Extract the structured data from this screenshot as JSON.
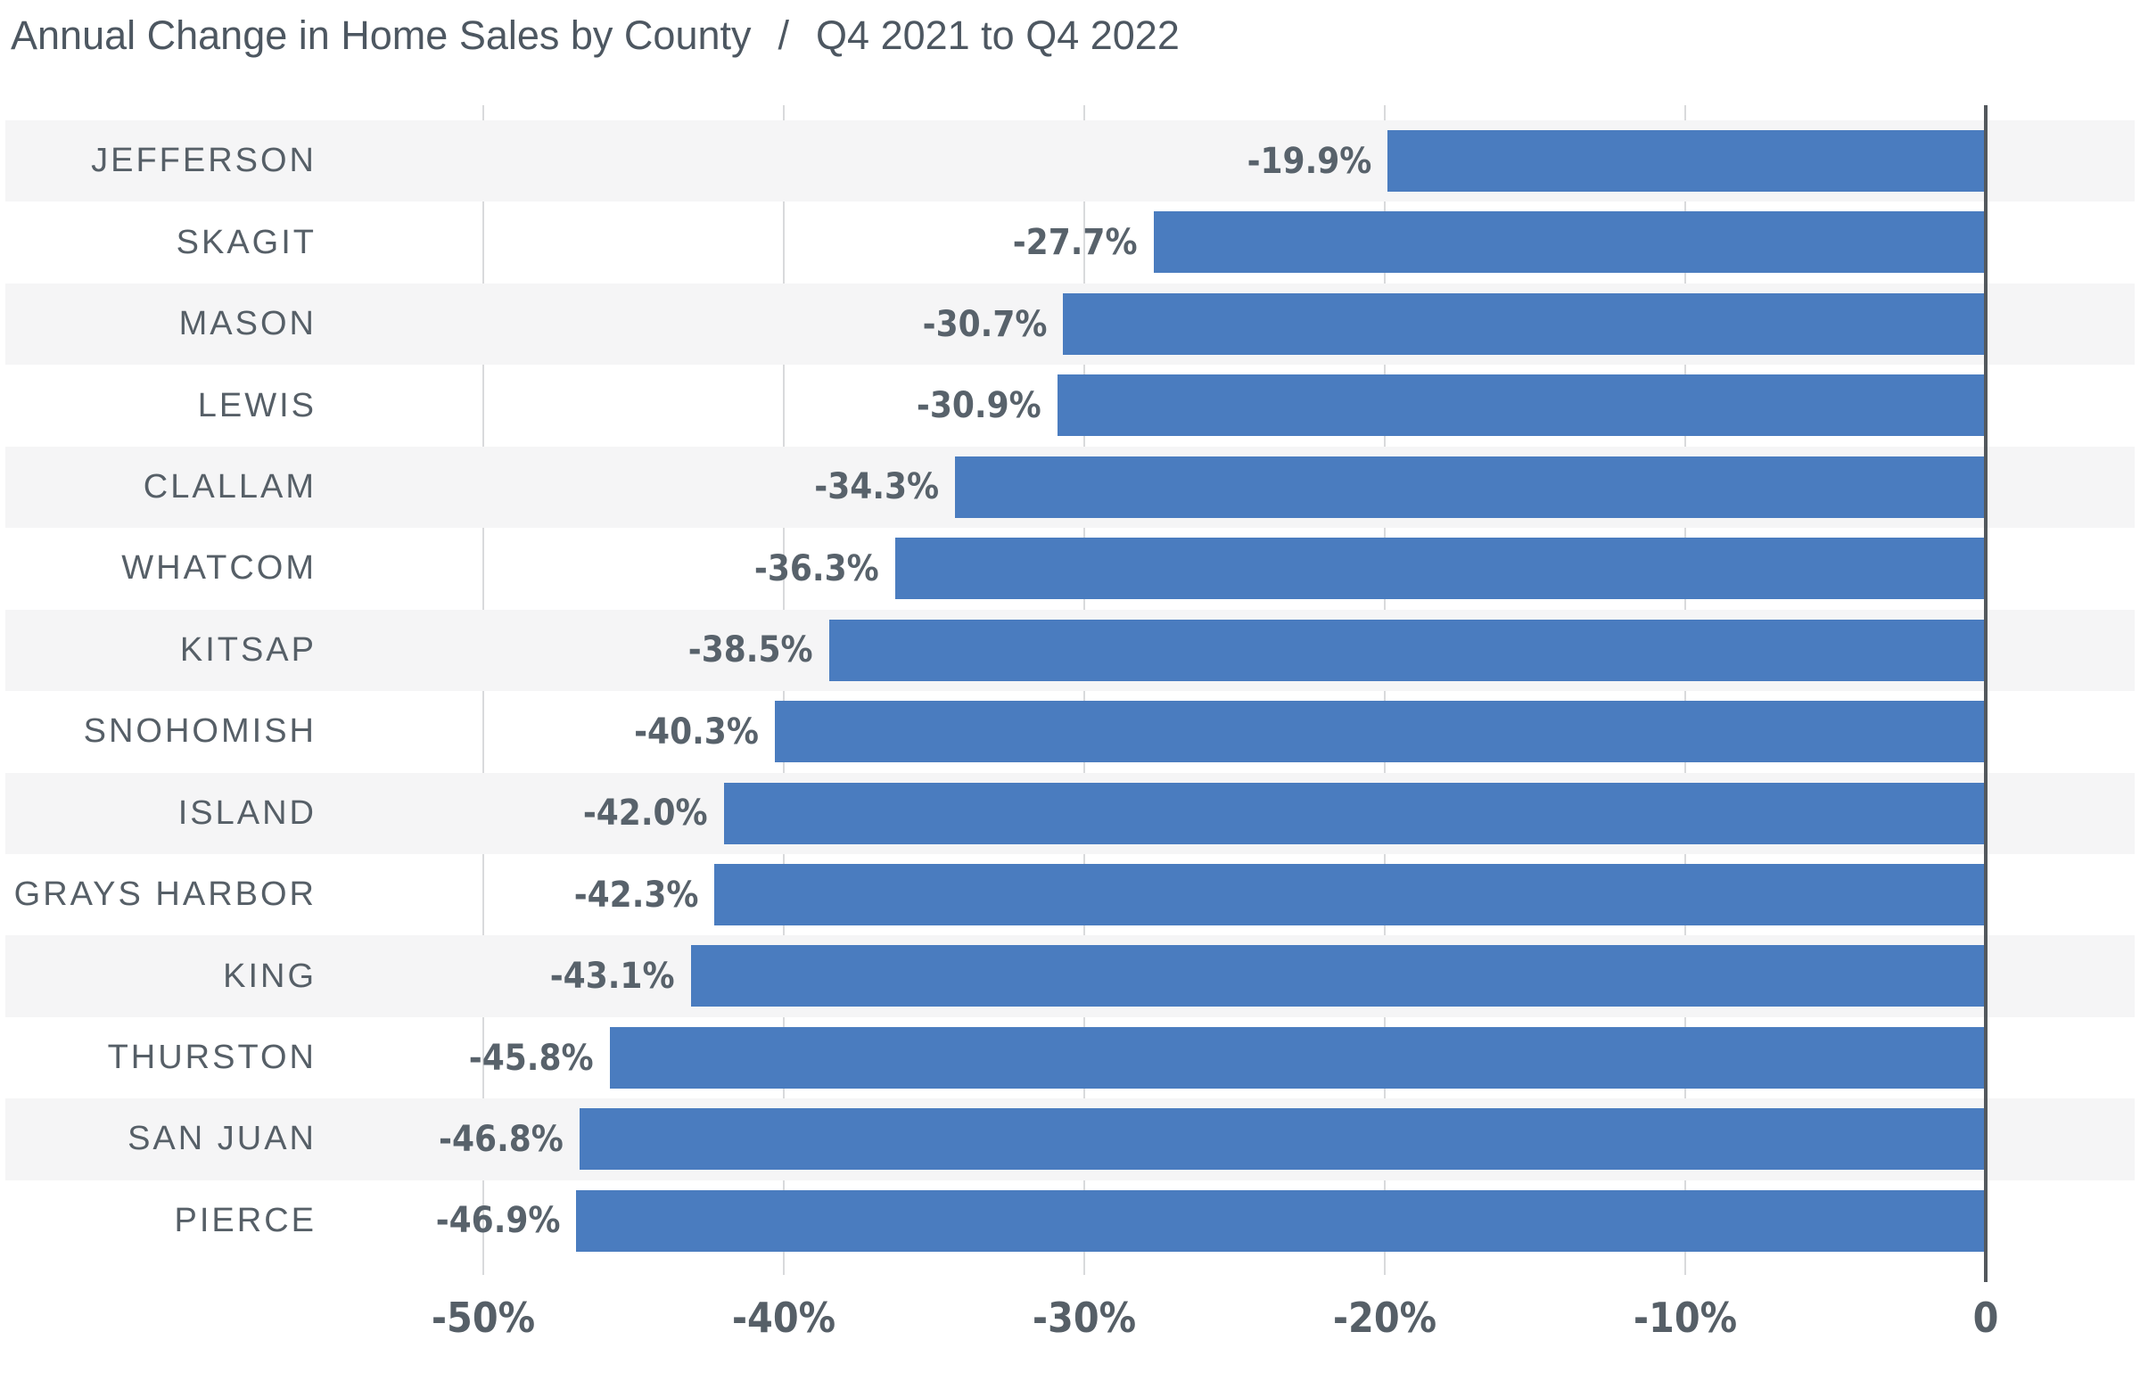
{
  "title": {
    "main": "Annual Change in Home Sales by County",
    "separator": "/",
    "period": "Q4 2021 to Q4 2022"
  },
  "chart_data": {
    "type": "bar",
    "orientation": "horizontal",
    "title": "Annual Change in Home Sales by County / Q4 2021 to Q4 2022",
    "xlabel": "",
    "ylabel": "",
    "value_suffix": "%",
    "categories": [
      "JEFFERSON",
      "SKAGIT",
      "MASON",
      "LEWIS",
      "CLALLAM",
      "WHATCOM",
      "KITSAP",
      "SNOHOMISH",
      "ISLAND",
      "GRAYS HARBOR",
      "KING",
      "THURSTON",
      "SAN JUAN",
      "PIERCE"
    ],
    "values": [
      -19.9,
      -27.7,
      -30.7,
      -30.9,
      -34.3,
      -36.3,
      -38.5,
      -40.3,
      -42.0,
      -42.3,
      -43.1,
      -45.8,
      -46.8,
      -46.9
    ],
    "value_labels": [
      "-19.9%",
      "-27.7%",
      "-30.7%",
      "-30.9%",
      "-34.3%",
      "-36.3%",
      "-38.5%",
      "-40.3%",
      "-42.0%",
      "-42.3%",
      "-43.1%",
      "-45.8%",
      "-46.8%",
      "-46.9%"
    ],
    "x_ticks": [
      {
        "label": "-50%",
        "value": -50
      },
      {
        "label": "-40%",
        "value": -40
      },
      {
        "label": "-30%",
        "value": -30
      },
      {
        "label": "-20%",
        "value": -20
      },
      {
        "label": "-10%",
        "value": -10
      },
      {
        "label": "0",
        "value": 0
      }
    ],
    "xlim": [
      -50,
      0
    ],
    "grid": true,
    "legend": false,
    "row_striping": "alternating, first row shaded"
  },
  "colors": {
    "bar": "#4a7cbf",
    "row_stripe": "#f5f5f6",
    "gridline": "#d9dadc",
    "zero_axis": "#53585d",
    "title_text": "#4d5761",
    "label_text": "#565f67",
    "value_text": "#58626b"
  }
}
